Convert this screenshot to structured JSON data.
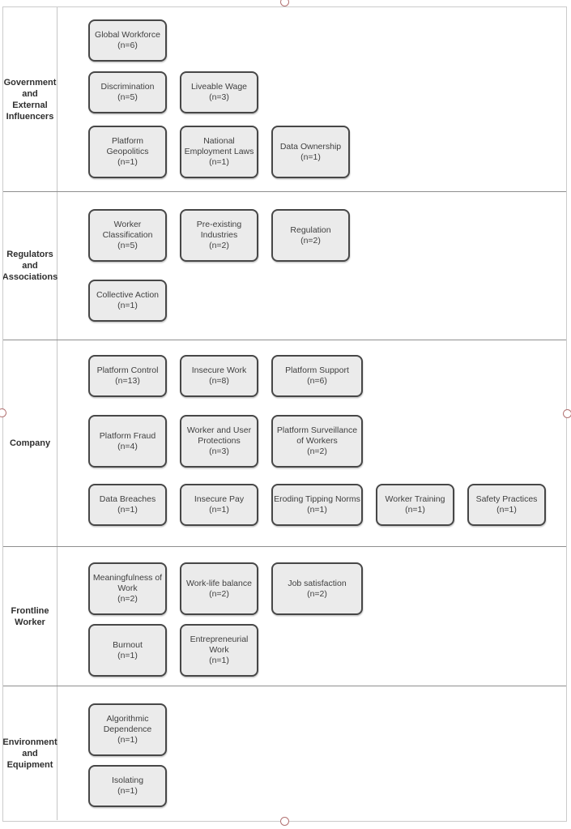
{
  "diagram": {
    "lanes": [
      {
        "label": "Government\nand\nExternal\nInfluencers",
        "rows": [
          [
            {
              "title": "Global Workforce",
              "count": "(n=6)"
            }
          ],
          [
            {
              "title": "Discrimination",
              "count": "(n=5)"
            },
            {
              "title": "Liveable Wage",
              "count": "(n=3)"
            }
          ],
          [
            {
              "title": "Platform\nGeopolitics",
              "count": "(n=1)"
            },
            {
              "title": "National\nEmployment Laws",
              "count": "(n=1)"
            },
            {
              "title": "Data Ownership",
              "count": "(n=1)"
            }
          ]
        ]
      },
      {
        "label": "Regulators\nand\nAssociations",
        "rows": [
          [
            {
              "title": "Worker\nClassification",
              "count": "(n=5)"
            },
            {
              "title": "Pre-existing\nIndustries",
              "count": "(n=2)"
            },
            {
              "title": "Regulation",
              "count": "(n=2)"
            }
          ],
          [
            {
              "title": "Collective Action",
              "count": "(n=1)"
            }
          ]
        ]
      },
      {
        "label": "Company",
        "rows": [
          [
            {
              "title": "Platform Control",
              "count": "(n=13)"
            },
            {
              "title": "Insecure Work",
              "count": "(n=8)"
            },
            {
              "title": "Platform Support",
              "count": "(n=6)",
              "wide": true
            }
          ],
          [
            {
              "title": "Platform Fraud",
              "count": "(n=4)"
            },
            {
              "title": "Worker and User\nProtections",
              "count": "(n=3)"
            },
            {
              "title": "Platform Surveillance\nof Workers",
              "count": "(n=2)",
              "wide": true
            }
          ],
          [
            {
              "title": "Data Breaches",
              "count": "(n=1)"
            },
            {
              "title": "Insecure Pay",
              "count": "(n=1)"
            },
            {
              "title": "Eroding Tipping Norms",
              "count": "(n=1)",
              "wide": true
            },
            {
              "title": "Worker Training",
              "count": "(n=1)"
            },
            {
              "title": "Safety Practices",
              "count": "(n=1)"
            }
          ]
        ]
      },
      {
        "label": "Frontline\nWorker",
        "rows": [
          [
            {
              "title": "Meaningfulness of\nWork",
              "count": "(n=2)"
            },
            {
              "title": "Work-life balance",
              "count": "(n=2)"
            },
            {
              "title": "Job satisfaction",
              "count": "(n=2)",
              "wide": true
            }
          ],
          [
            {
              "title": "Burnout",
              "count": "(n=1)"
            },
            {
              "title": "Entrepreneurial\nWork",
              "count": "(n=1)"
            }
          ]
        ]
      },
      {
        "label": "Environment\nand\nEquipment",
        "rows": [
          [
            {
              "title": "Algorithmic\nDependence",
              "count": "(n=1)"
            }
          ],
          [
            {
              "title": "Isolating",
              "count": "(n=1)"
            }
          ]
        ]
      }
    ],
    "colors": {
      "box_fill": "#ebebeb",
      "box_border": "#474747",
      "lane_divider": "#8f8f8f",
      "outer_border": "#cbcbcb",
      "col_divider": "#c6c6c6",
      "handle": "#b27272"
    }
  }
}
